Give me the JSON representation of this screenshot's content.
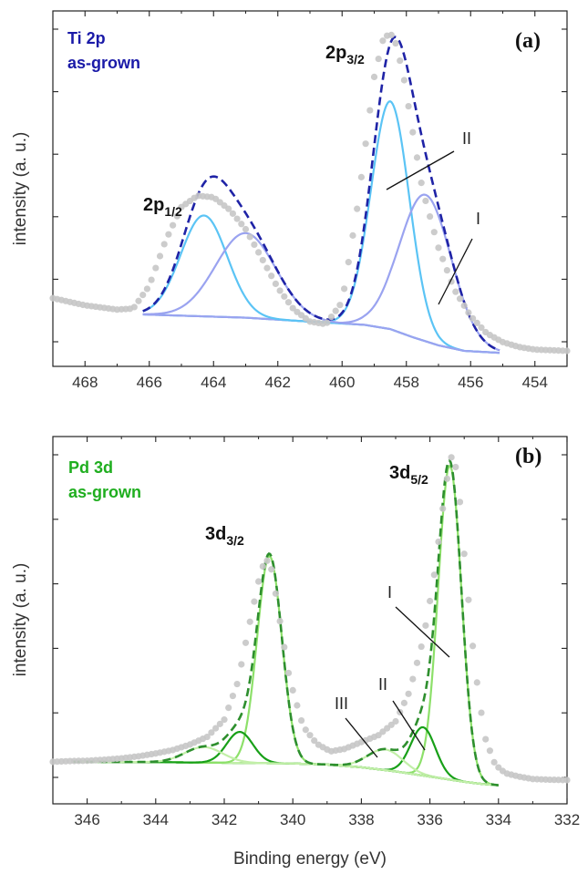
{
  "chart_data": [
    {
      "type": "line",
      "panel_label": "(a)",
      "title": "",
      "corner_lines": [
        "Ti 2p",
        "as-grown"
      ],
      "corner_color": "#1a1aa8",
      "xlabel": "Binding energy (eV)",
      "show_xlabel": false,
      "ylabel": "intensity (a. u.)",
      "xlim": [
        469,
        453
      ],
      "x_ticks": [
        468,
        466,
        464,
        462,
        460,
        458,
        456,
        454
      ],
      "ylim": [
        0,
        1
      ],
      "grid": false,
      "peak_labels": [
        {
          "main": "2p",
          "sub": "1/2"
        },
        {
          "main": "2p",
          "sub": "3/2"
        }
      ],
      "component_labels": [
        "II",
        "I"
      ],
      "series": [
        {
          "role": "background",
          "color": "#3e4a6e",
          "x": [
            466.2,
            463,
            461,
            459.3,
            458.5,
            457.8,
            457,
            456.2,
            455.1
          ],
          "y": [
            0.14,
            0.13,
            0.118,
            0.108,
            0.095,
            0.07,
            0.045,
            0.028,
            0.022
          ]
        },
        {
          "role": "component",
          "color": "#5bc4f5",
          "center": 458.5,
          "fwhm": 1.4,
          "height": 0.7
        },
        {
          "role": "component",
          "color": "#9aa3f0",
          "center": 457.4,
          "fwhm": 1.9,
          "height": 0.45
        },
        {
          "role": "component",
          "color": "#5bc4f5",
          "center": 464.3,
          "fwhm": 1.7,
          "height": 0.31
        },
        {
          "role": "component",
          "color": "#9aa3f0",
          "center": 463.0,
          "fwhm": 2.2,
          "height": 0.26
        },
        {
          "role": "fit_envelope",
          "color": "#1f23a6",
          "x_range": [
            466.2,
            455.1
          ]
        },
        {
          "role": "measured",
          "color": "#c6c6c6",
          "x": [
            469.0,
            468.0,
            467.0,
            466.5,
            466.0,
            465.5,
            465.0,
            464.5,
            464.0,
            463.5,
            463.0,
            462.5,
            462.0,
            461.5,
            461.0,
            460.5,
            460.0,
            459.5,
            459.0,
            458.7,
            458.4,
            458.1,
            457.8,
            457.5,
            457.0,
            456.5,
            456.0,
            455.5,
            455.0,
            454.5,
            454.0,
            453.0
          ],
          "y": [
            0.19,
            0.168,
            0.155,
            0.158,
            0.228,
            0.365,
            0.47,
            0.505,
            0.5,
            0.462,
            0.402,
            0.313,
            0.222,
            0.155,
            0.118,
            0.11,
            0.178,
            0.485,
            0.87,
            0.995,
            1.0,
            0.88,
            0.7,
            0.525,
            0.345,
            0.215,
            0.135,
            0.082,
            0.055,
            0.04,
            0.032,
            0.028
          ]
        }
      ]
    },
    {
      "type": "line",
      "panel_label": "(b)",
      "title": "",
      "corner_lines": [
        "Pd 3d",
        "as-grown"
      ],
      "corner_color": "#1fae1f",
      "xlabel": "Binding energy (eV)",
      "show_xlabel": true,
      "ylabel": "intensity (a. u.)",
      "xlim": [
        347,
        332
      ],
      "x_ticks": [
        346,
        344,
        342,
        340,
        338,
        336,
        334,
        332
      ],
      "ylim": [
        0,
        1
      ],
      "grid": false,
      "peak_labels": [
        {
          "main": "3d",
          "sub": "3/2"
        },
        {
          "main": "3d",
          "sub": "5/2"
        }
      ],
      "component_labels": [
        "I",
        "III",
        "II"
      ],
      "series": [
        {
          "role": "background",
          "color": "#3c4a3c",
          "x": [
            346.4,
            344,
            342,
            340,
            339,
            338,
            337,
            336,
            335,
            334.5,
            334
          ],
          "y": [
            0.098,
            0.097,
            0.095,
            0.093,
            0.09,
            0.082,
            0.07,
            0.055,
            0.04,
            0.034,
            0.03
          ]
        },
        {
          "role": "component",
          "color": "#8de06a",
          "center": 335.42,
          "fwhm": 0.8,
          "height": 0.91
        },
        {
          "role": "component",
          "color": "#18a018",
          "center": 336.2,
          "fwhm": 0.85,
          "height": 0.14
        },
        {
          "role": "component",
          "color": "#c2efa8",
          "center": 337.3,
          "fwhm": 1.2,
          "height": 0.06
        },
        {
          "role": "component",
          "color": "#8de06a",
          "center": 340.68,
          "fwhm": 0.85,
          "height": 0.6
        },
        {
          "role": "component",
          "color": "#18a018",
          "center": 341.55,
          "fwhm": 0.9,
          "height": 0.09
        },
        {
          "role": "component",
          "color": "#c2efa8",
          "center": 342.6,
          "fwhm": 1.3,
          "height": 0.045
        },
        {
          "role": "fit_envelope",
          "color": "#2e8f2e",
          "x_range": [
            346.4,
            334.0
          ]
        },
        {
          "role": "measured",
          "color": "#c6c6c6",
          "x": [
            347.0,
            346.5,
            346.0,
            345.5,
            345.0,
            344.5,
            344.0,
            343.5,
            343.0,
            342.5,
            342.0,
            341.6,
            341.3,
            341.0,
            340.8,
            340.6,
            340.4,
            340.1,
            339.7,
            339.3,
            338.9,
            338.5,
            338.0,
            337.5,
            337.0,
            336.6,
            336.2,
            335.9,
            335.6,
            335.4,
            335.2,
            335.0,
            334.7,
            334.4,
            334.1,
            333.8,
            333.4,
            333.0,
            332.5,
            332.0
          ],
          "y": [
            0.098,
            0.1,
            0.101,
            0.104,
            0.108,
            0.114,
            0.122,
            0.132,
            0.148,
            0.17,
            0.22,
            0.33,
            0.48,
            0.62,
            0.69,
            0.65,
            0.52,
            0.34,
            0.2,
            0.15,
            0.128,
            0.135,
            0.155,
            0.175,
            0.215,
            0.3,
            0.45,
            0.62,
            0.85,
            0.985,
            0.94,
            0.7,
            0.38,
            0.17,
            0.09,
            0.065,
            0.055,
            0.048,
            0.046,
            0.045
          ]
        }
      ]
    }
  ]
}
